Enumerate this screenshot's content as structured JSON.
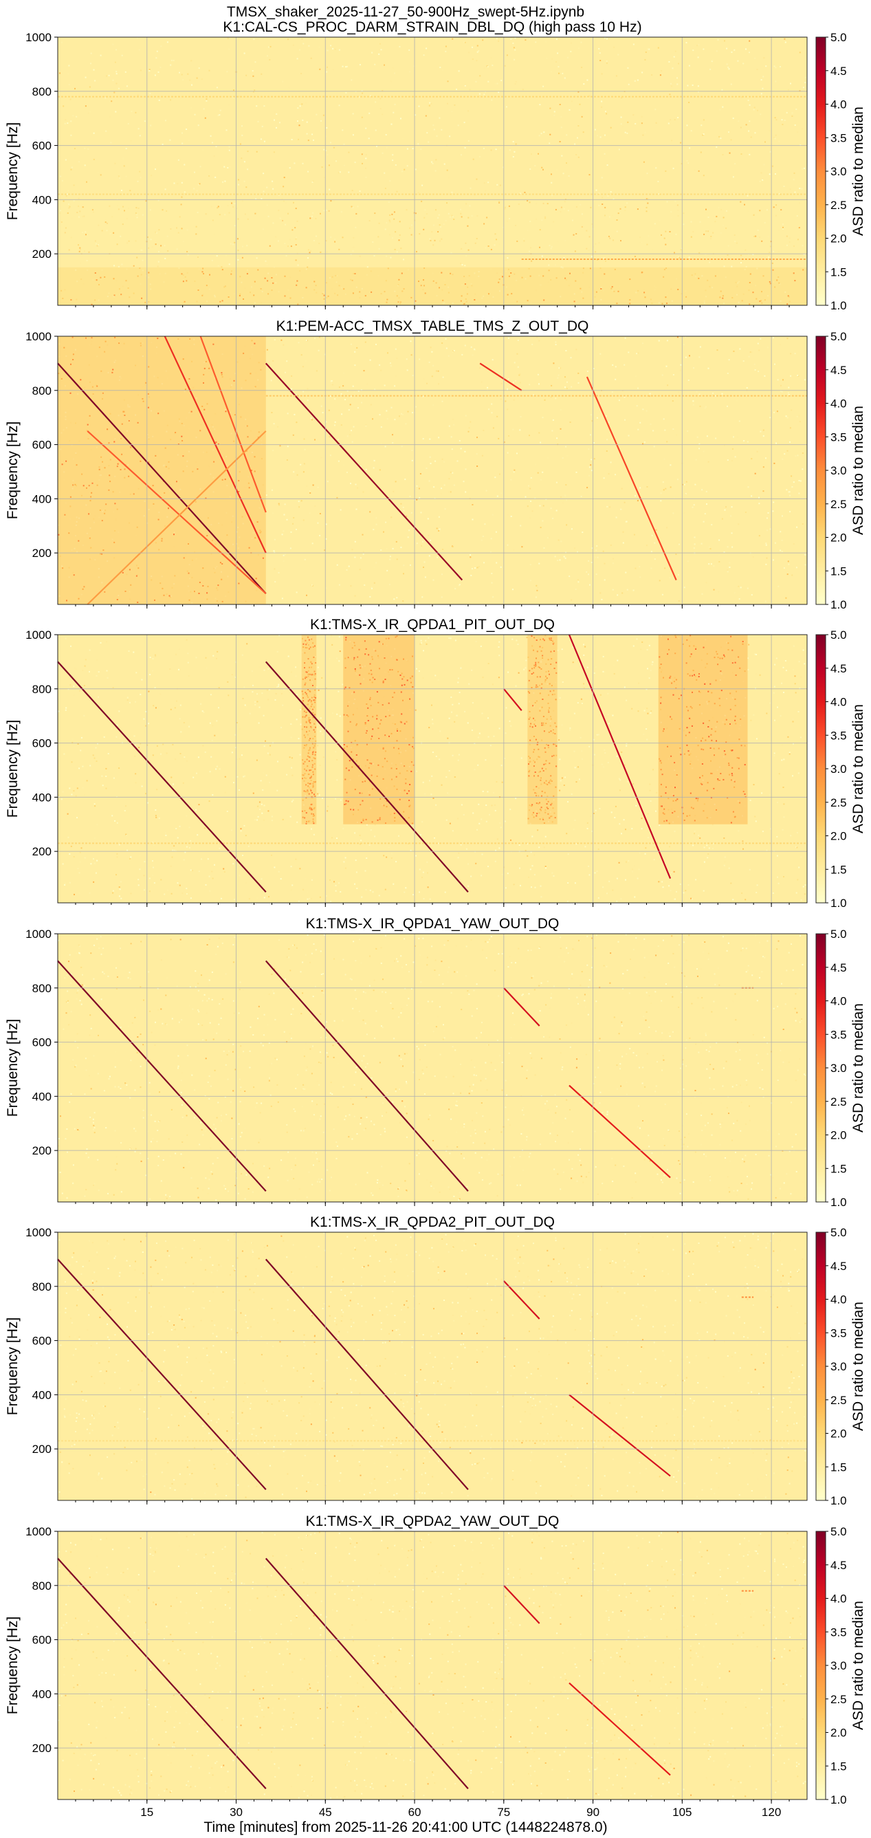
{
  "figure": {
    "notebook_title": "TMSX_shaker_2025-11-27_50-900Hz_swept-5Hz.ipynb",
    "xlabel": "Time [minutes] from 2025-11-26 20:41:00 UTC (1448224878.0)"
  },
  "colormap": {
    "name": "YlOrRd",
    "stops": [
      "#ffffcc",
      "#ffeda0",
      "#fed976",
      "#feb24c",
      "#fd8d3c",
      "#fc4e2a",
      "#e31a1c",
      "#bd0026",
      "#800026"
    ]
  },
  "chart_data": [
    {
      "type": "heatmap",
      "title": "K1:CAL-CS_PROC_DARM_STRAIN_DBL_DQ (high pass 10 Hz)",
      "ylabel": "Frequency [Hz]",
      "xlabel": "",
      "ylim": [
        10,
        1000
      ],
      "xlim": [
        0,
        126
      ],
      "yticks": [
        200,
        400,
        600,
        800,
        1000
      ],
      "xticks": [
        15,
        30,
        45,
        60,
        75,
        90,
        105,
        120
      ],
      "colorbar": {
        "label": "ASD ratio to median",
        "range": [
          1.0,
          5.0
        ],
        "ticks": [
          "1.0",
          "1.5",
          "2.0",
          "2.5",
          "3.0",
          "3.5",
          "4.0",
          "4.5",
          "5.0"
        ]
      },
      "grid": true,
      "features": [
        {
          "kind": "hline",
          "f": 780,
          "t0": 0,
          "t1": 126,
          "level": 0.25
        },
        {
          "kind": "hline",
          "f": 420,
          "t0": 0,
          "t1": 126,
          "level": 0.22
        },
        {
          "kind": "hline",
          "f": 180,
          "t0": 78,
          "t1": 126,
          "level": 0.4
        },
        {
          "kind": "band",
          "t0": 0,
          "t1": 126,
          "f0": 10,
          "f1": 150,
          "level": 0.22
        },
        {
          "kind": "band",
          "t0": 0,
          "t1": 126,
          "f0": 200,
          "f1": 400,
          "level": 0.12
        }
      ]
    },
    {
      "type": "heatmap",
      "title": "K1:PEM-ACC_TMSX_TABLE_TMS_Z_OUT_DQ",
      "ylabel": "Frequency [Hz]",
      "xlabel": "",
      "ylim": [
        10,
        1000
      ],
      "xlim": [
        0,
        126
      ],
      "yticks": [
        200,
        400,
        600,
        800,
        1000
      ],
      "xticks": [
        15,
        30,
        45,
        60,
        75,
        90,
        105,
        120
      ],
      "colorbar": {
        "label": "ASD ratio to median",
        "range": [
          1.0,
          5.0
        ],
        "ticks": [
          "1.0",
          "1.5",
          "2.0",
          "2.5",
          "3.0",
          "3.5",
          "4.0",
          "4.5",
          "5.0"
        ]
      },
      "grid": true,
      "features": [
        {
          "kind": "band",
          "t0": 0,
          "t1": 35,
          "f0": 10,
          "f1": 1000,
          "level": 0.3
        },
        {
          "kind": "sweep",
          "t0": 0,
          "f0": 900,
          "t1": 35,
          "f1": 50,
          "level": 1.0
        },
        {
          "kind": "sweep",
          "t0": 18,
          "f0": 1000,
          "t1": 35,
          "f1": 200,
          "level": 0.7
        },
        {
          "kind": "sweep",
          "t0": 24,
          "f0": 1000,
          "t1": 35,
          "f1": 350,
          "level": 0.6
        },
        {
          "kind": "sweep",
          "t0": 5,
          "f0": 650,
          "t1": 35,
          "f1": 50,
          "level": 0.6
        },
        {
          "kind": "sweep",
          "t0": 5,
          "f0": 10,
          "t1": 35,
          "f1": 650,
          "level": 0.45
        },
        {
          "kind": "sweep",
          "t0": 35,
          "f0": 900,
          "t1": 68,
          "f1": 100,
          "level": 0.95
        },
        {
          "kind": "sweep",
          "t0": 71,
          "f0": 900,
          "t1": 78,
          "f1": 800,
          "level": 0.7
        },
        {
          "kind": "sweep",
          "t0": 89,
          "f0": 850,
          "t1": 104,
          "f1": 100,
          "level": 0.65
        },
        {
          "kind": "hline",
          "f": 780,
          "t0": 35,
          "t1": 126,
          "level": 0.3
        }
      ]
    },
    {
      "type": "heatmap",
      "title": "K1:TMS-X_IR_QPDA1_PIT_OUT_DQ",
      "ylabel": "Frequency [Hz]",
      "xlabel": "",
      "ylim": [
        10,
        1000
      ],
      "xlim": [
        0,
        126
      ],
      "yticks": [
        200,
        400,
        600,
        800,
        1000
      ],
      "xticks": [
        15,
        30,
        45,
        60,
        75,
        90,
        105,
        120
      ],
      "colorbar": {
        "label": "ASD ratio to median",
        "range": [
          1.0,
          5.0
        ],
        "ticks": [
          "1.0",
          "1.5",
          "2.0",
          "2.5",
          "3.0",
          "3.5",
          "4.0",
          "4.5",
          "5.0"
        ]
      },
      "grid": true,
      "features": [
        {
          "kind": "band",
          "t0": 41,
          "t1": 43.5,
          "f0": 300,
          "f1": 1000,
          "level": 0.3
        },
        {
          "kind": "band",
          "t0": 48,
          "t1": 60,
          "f0": 300,
          "f1": 1000,
          "level": 0.35
        },
        {
          "kind": "band",
          "t0": 79,
          "t1": 84,
          "f0": 300,
          "f1": 1000,
          "level": 0.3
        },
        {
          "kind": "band",
          "t0": 101,
          "t1": 116,
          "f0": 300,
          "f1": 1000,
          "level": 0.35
        },
        {
          "kind": "hline",
          "f": 230,
          "t0": 0,
          "t1": 126,
          "level": 0.25
        },
        {
          "kind": "sweep",
          "t0": 0,
          "f0": 900,
          "t1": 35,
          "f1": 50,
          "level": 1.0
        },
        {
          "kind": "sweep",
          "t0": 35,
          "f0": 900,
          "t1": 69,
          "f1": 50,
          "level": 1.0
        },
        {
          "kind": "sweep",
          "t0": 75,
          "f0": 800,
          "t1": 78,
          "f1": 720,
          "level": 0.8
        },
        {
          "kind": "sweep",
          "t0": 86,
          "f0": 1000,
          "t1": 103,
          "f1": 100,
          "level": 0.85
        }
      ]
    },
    {
      "type": "heatmap",
      "title": "K1:TMS-X_IR_QPDA1_YAW_OUT_DQ",
      "ylabel": "Frequency [Hz]",
      "xlabel": "",
      "ylim": [
        10,
        1000
      ],
      "xlim": [
        0,
        126
      ],
      "yticks": [
        200,
        400,
        600,
        800,
        1000
      ],
      "xticks": [
        15,
        30,
        45,
        60,
        75,
        90,
        105,
        120
      ],
      "colorbar": {
        "label": "ASD ratio to median",
        "range": [
          1.0,
          5.0
        ],
        "ticks": [
          "1.0",
          "1.5",
          "2.0",
          "2.5",
          "3.0",
          "3.5",
          "4.0",
          "4.5",
          "5.0"
        ]
      },
      "grid": true,
      "features": [
        {
          "kind": "sweep",
          "t0": 0,
          "f0": 900,
          "t1": 35,
          "f1": 50,
          "level": 1.0
        },
        {
          "kind": "sweep",
          "t0": 35,
          "f0": 900,
          "t1": 69,
          "f1": 50,
          "level": 1.0
        },
        {
          "kind": "sweep",
          "t0": 75,
          "f0": 800,
          "t1": 81,
          "f1": 660,
          "level": 0.8
        },
        {
          "kind": "sweep",
          "t0": 86,
          "f0": 440,
          "t1": 103,
          "f1": 100,
          "level": 0.75
        },
        {
          "kind": "hline",
          "f": 800,
          "t0": 115,
          "t1": 117,
          "level": 0.5
        }
      ]
    },
    {
      "type": "heatmap",
      "title": "K1:TMS-X_IR_QPDA2_PIT_OUT_DQ",
      "ylabel": "Frequency [Hz]",
      "xlabel": "",
      "ylim": [
        10,
        1000
      ],
      "xlim": [
        0,
        126
      ],
      "yticks": [
        200,
        400,
        600,
        800,
        1000
      ],
      "xticks": [
        15,
        30,
        45,
        60,
        75,
        90,
        105,
        120
      ],
      "colorbar": {
        "label": "ASD ratio to median",
        "range": [
          1.0,
          5.0
        ],
        "ticks": [
          "1.0",
          "1.5",
          "2.0",
          "2.5",
          "3.0",
          "3.5",
          "4.0",
          "4.5",
          "5.0"
        ]
      },
      "grid": true,
      "features": [
        {
          "kind": "hline",
          "f": 230,
          "t0": 0,
          "t1": 126,
          "level": 0.2
        },
        {
          "kind": "sweep",
          "t0": 0,
          "f0": 900,
          "t1": 35,
          "f1": 50,
          "level": 1.0
        },
        {
          "kind": "sweep",
          "t0": 35,
          "f0": 900,
          "t1": 69,
          "f1": 50,
          "level": 1.0
        },
        {
          "kind": "sweep",
          "t0": 75,
          "f0": 820,
          "t1": 81,
          "f1": 680,
          "level": 0.8
        },
        {
          "kind": "sweep",
          "t0": 86,
          "f0": 400,
          "t1": 103,
          "f1": 100,
          "level": 0.8
        },
        {
          "kind": "hline",
          "f": 760,
          "t0": 115,
          "t1": 117,
          "level": 0.5
        }
      ]
    },
    {
      "type": "heatmap",
      "title": "K1:TMS-X_IR_QPDA2_YAW_OUT_DQ",
      "ylabel": "Frequency [Hz]",
      "xlabel": "Time [minutes] from 2025-11-26 20:41:00 UTC (1448224878.0)",
      "ylim": [
        10,
        1000
      ],
      "xlim": [
        0,
        126
      ],
      "yticks": [
        200,
        400,
        600,
        800,
        1000
      ],
      "xticks": [
        15,
        30,
        45,
        60,
        75,
        90,
        105,
        120
      ],
      "colorbar": {
        "label": "ASD ratio to median",
        "range": [
          1.0,
          5.0
        ],
        "ticks": [
          "1.0",
          "1.5",
          "2.0",
          "2.5",
          "3.0",
          "3.5",
          "4.0",
          "4.5",
          "5.0"
        ]
      },
      "grid": true,
      "features": [
        {
          "kind": "sweep",
          "t0": 0,
          "f0": 900,
          "t1": 35,
          "f1": 50,
          "level": 1.0
        },
        {
          "kind": "sweep",
          "t0": 35,
          "f0": 900,
          "t1": 69,
          "f1": 50,
          "level": 1.0
        },
        {
          "kind": "sweep",
          "t0": 75,
          "f0": 800,
          "t1": 81,
          "f1": 660,
          "level": 0.8
        },
        {
          "kind": "sweep",
          "t0": 86,
          "f0": 440,
          "t1": 103,
          "f1": 100,
          "level": 0.75
        },
        {
          "kind": "hline",
          "f": 780,
          "t0": 115,
          "t1": 117,
          "level": 0.5
        }
      ]
    }
  ]
}
